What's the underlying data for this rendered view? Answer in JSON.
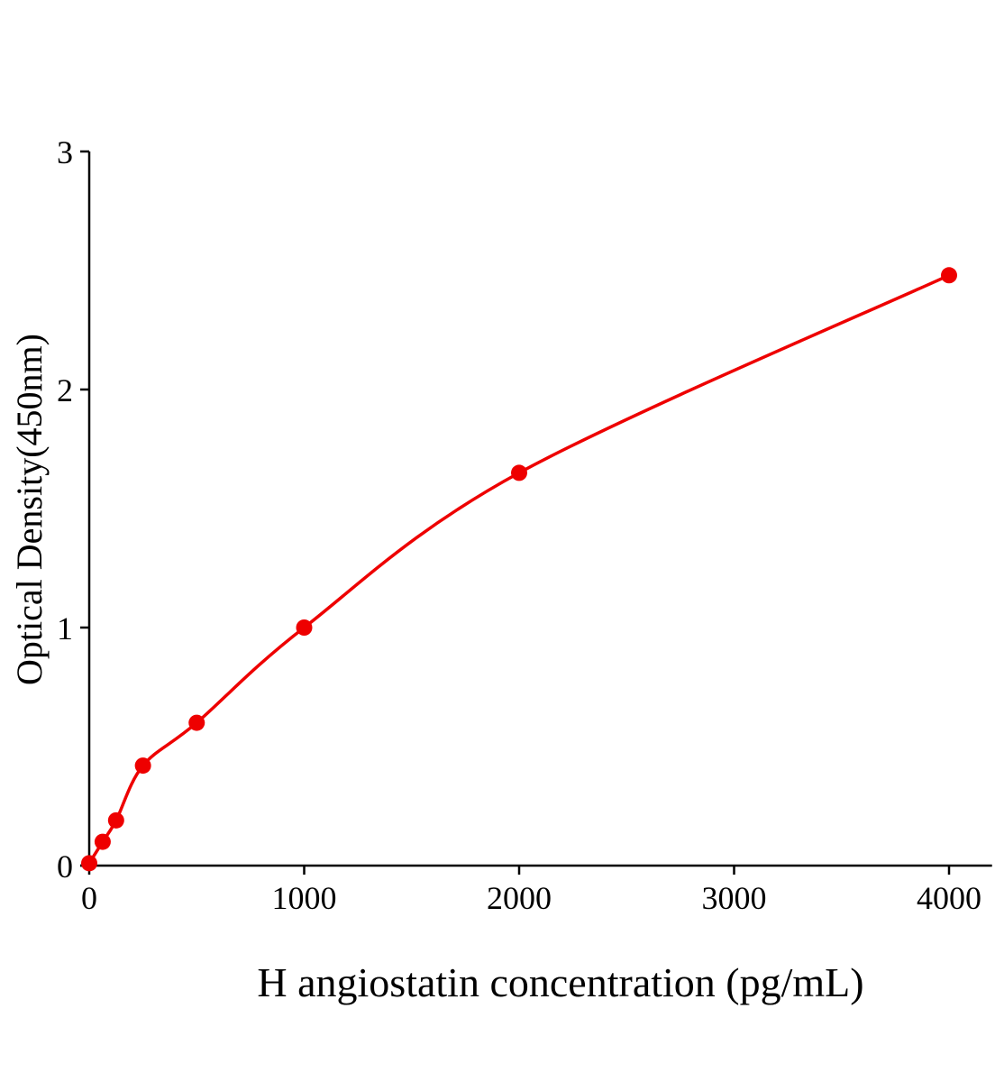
{
  "chart_data": {
    "type": "scatter",
    "title": "",
    "xlabel": "H angiostatin concentration (pg/mL)",
    "ylabel": "Optical Density(450nm)",
    "xlim": [
      0,
      4200
    ],
    "ylim": [
      0,
      3
    ],
    "xticks": [
      0,
      1000,
      2000,
      3000,
      4000
    ],
    "yticks": [
      0,
      1,
      2,
      3
    ],
    "grid": false,
    "color": "#ee0000",
    "series": [
      {
        "x": [
          0,
          62.5,
          125,
          250,
          500,
          1000,
          2000,
          4000
        ],
        "y": [
          0.01,
          0.1,
          0.19,
          0.42,
          0.6,
          1.0,
          1.65,
          2.48
        ]
      }
    ],
    "fit_curve": true
  }
}
